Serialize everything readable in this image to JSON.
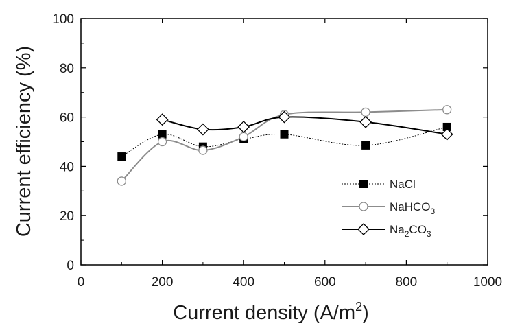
{
  "chart_data": {
    "type": "line",
    "xlabel": "Current density (A/m",
    "xlabel_sup": "2",
    "xlabel_suffix": ")",
    "ylabel": "Current efficiency (%)",
    "xlim": [
      0,
      1000
    ],
    "ylim": [
      0,
      100
    ],
    "xticks": [
      0,
      200,
      400,
      600,
      800,
      1000
    ],
    "yticks": [
      0,
      20,
      40,
      60,
      80,
      100
    ],
    "grid": false,
    "legend_position": "lower-right",
    "series": [
      {
        "name": "NaCl",
        "legend_parts": [
          {
            "t": "NaCl",
            "sub": false
          }
        ],
        "marker": "filled-square",
        "line_style": "dotted",
        "color": "#000000",
        "x": [
          100,
          200,
          300,
          400,
          500,
          700,
          900
        ],
        "y": [
          44,
          53,
          48,
          51,
          53,
          48.5,
          56
        ]
      },
      {
        "name": "NaHCO3",
        "legend_parts": [
          {
            "t": "NaHCO",
            "sub": false
          },
          {
            "t": "3",
            "sub": true
          }
        ],
        "marker": "open-circle",
        "line_style": "solid",
        "color": "#8c8c8c",
        "x": [
          100,
          200,
          300,
          400,
          500,
          700,
          900
        ],
        "y": [
          34,
          50,
          46.5,
          52,
          61,
          62,
          63
        ]
      },
      {
        "name": "Na2CO3",
        "legend_parts": [
          {
            "t": "Na",
            "sub": false
          },
          {
            "t": "2",
            "sub": true
          },
          {
            "t": "CO",
            "sub": false
          },
          {
            "t": "3",
            "sub": true
          }
        ],
        "marker": "open-diamond",
        "line_style": "solid",
        "color": "#000000",
        "x": [
          200,
          300,
          400,
          500,
          700,
          900
        ],
        "y": [
          59,
          55,
          56,
          60,
          58,
          53
        ]
      }
    ]
  }
}
